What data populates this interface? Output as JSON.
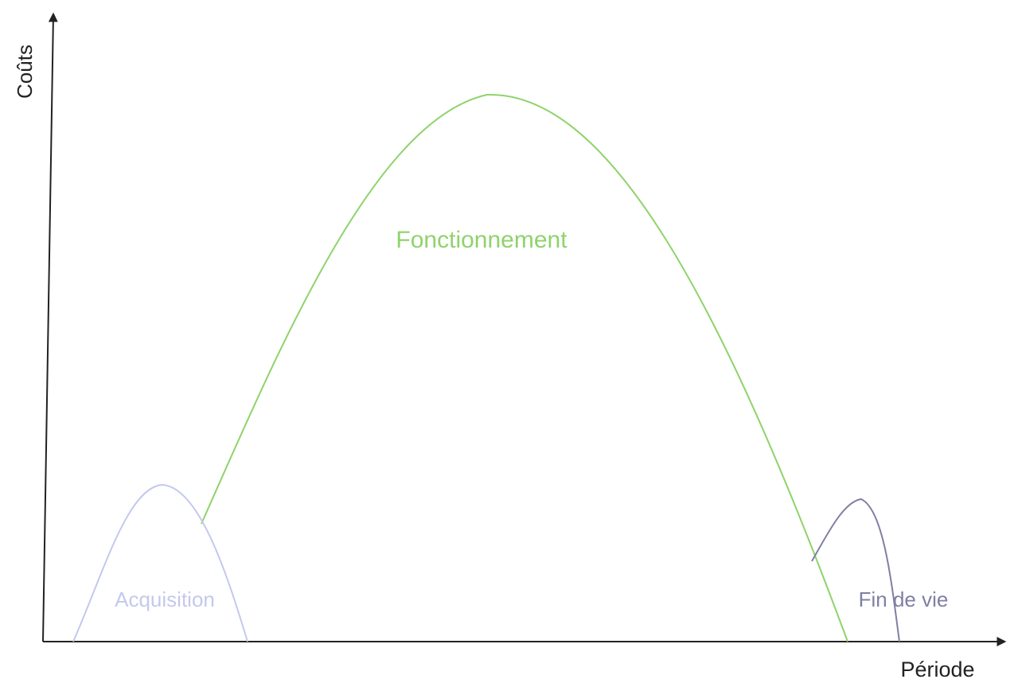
{
  "axes": {
    "y_label": "Coûts",
    "x_label": "Période"
  },
  "phases": [
    {
      "label": "Acquisition",
      "color": "#c3c9ec"
    },
    {
      "label": "Fonctionnement",
      "color": "#8fd36b"
    },
    {
      "label": "Fin de vie",
      "color": "#7f7fa3"
    }
  ]
}
